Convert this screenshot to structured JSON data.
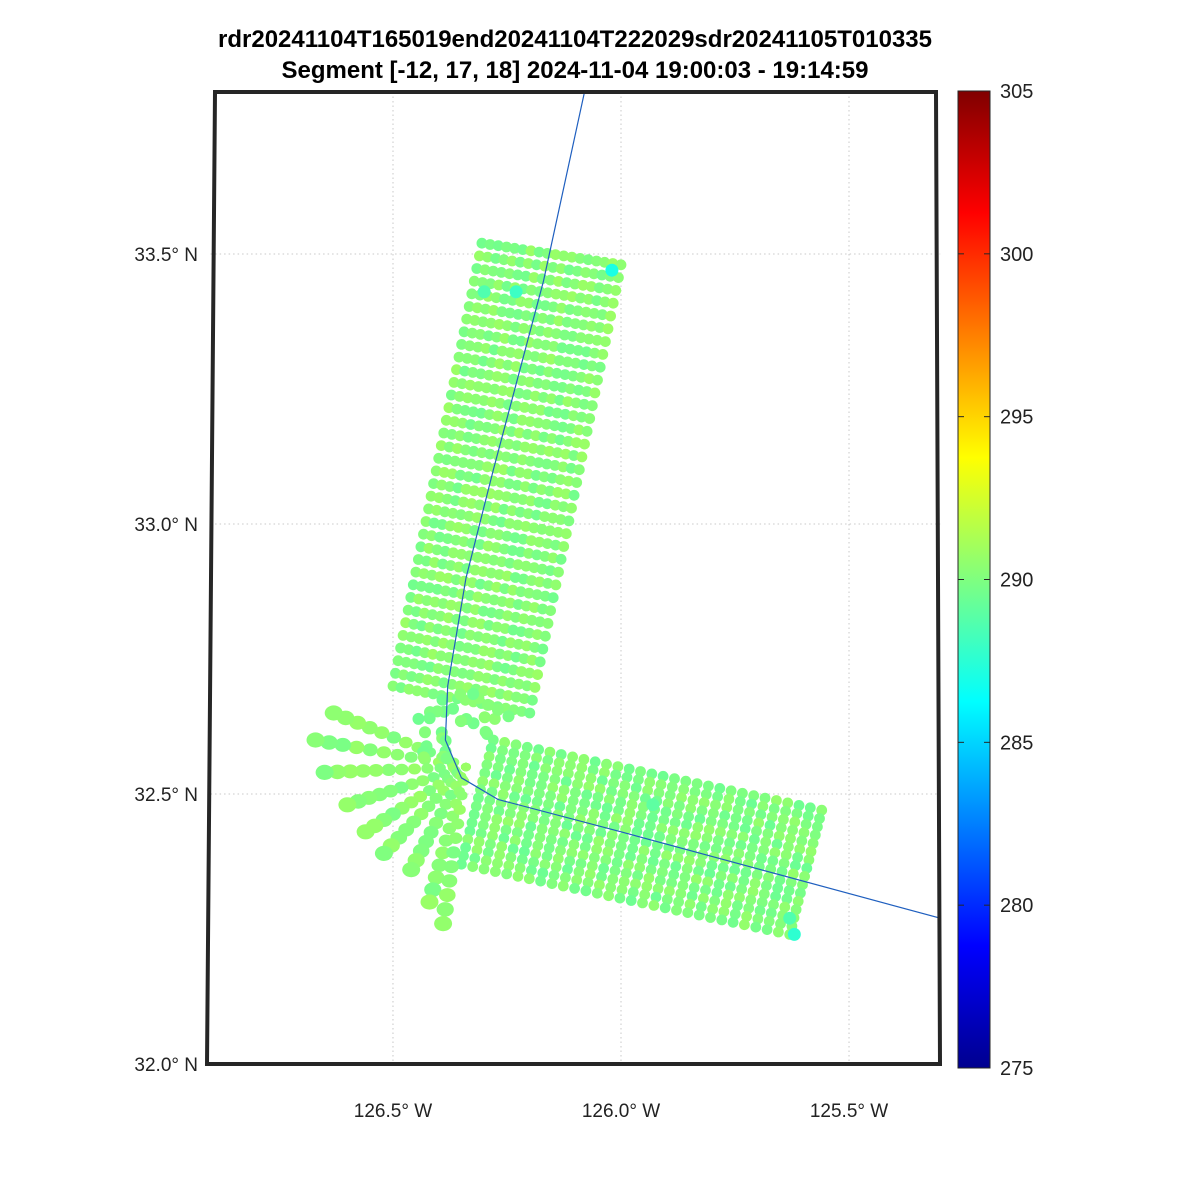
{
  "chart_data": {
    "type": "scatter",
    "title": "rdr20241104T165019end20241104T222029sdr20241105T010335",
    "subtitle": "Segment [-12, 17, 18] 2024-11-04 19:00:03 - 19:14:59",
    "xlabel": "",
    "ylabel": "",
    "projection": "map",
    "xlim": [
      -126.9,
      -125.3
    ],
    "ylim": [
      32.0,
      33.8
    ],
    "grid": true,
    "x_ticks": [
      {
        "value": -126.5,
        "label": "126.5° W"
      },
      {
        "value": -126.0,
        "label": "126.0° W"
      },
      {
        "value": -125.5,
        "label": "125.5° W"
      }
    ],
    "y_ticks": [
      {
        "value": 32.0,
        "label": "32.0° N"
      },
      {
        "value": 32.5,
        "label": "32.5° N"
      },
      {
        "value": 33.0,
        "label": "33.0° N"
      },
      {
        "value": 33.5,
        "label": "33.5° N"
      }
    ],
    "colorbar": {
      "colormap": "jet",
      "range": [
        275,
        305
      ],
      "ticks": [
        "275",
        "280",
        "285",
        "290",
        "295",
        "300",
        "305"
      ]
    },
    "track": {
      "color": "#1f5fbf",
      "points": [
        {
          "lon": -126.08,
          "lat": 33.8
        },
        {
          "lon": -126.17,
          "lat": 33.45
        },
        {
          "lon": -126.28,
          "lat": 33.1
        },
        {
          "lon": -126.34,
          "lat": 32.9
        },
        {
          "lon": -126.38,
          "lat": 32.7
        },
        {
          "lon": -126.385,
          "lat": 32.6
        },
        {
          "lon": -126.35,
          "lat": 32.53
        },
        {
          "lon": -126.27,
          "lat": 32.49
        },
        {
          "lon": -126.0,
          "lat": 32.43
        },
        {
          "lon": -125.65,
          "lat": 32.35
        },
        {
          "lon": -125.3,
          "lat": 32.27
        }
      ]
    },
    "swaths": [
      {
        "name": "north-leg",
        "value": 290.2,
        "corner_a": {
          "lon": -126.305,
          "lat": 33.52
        },
        "corner_b": {
          "lon": -126.0,
          "lat": 33.48
        },
        "corner_c": {
          "lon": -126.2,
          "lat": 32.65
        },
        "corner_d": {
          "lon": -126.5,
          "lat": 32.7
        },
        "rows": 36,
        "cols": 18
      },
      {
        "name": "east-leg",
        "value": 290.0,
        "corner_a": {
          "lon": -126.28,
          "lat": 32.6
        },
        "corner_b": {
          "lon": -125.56,
          "lat": 32.47
        },
        "corner_c": {
          "lon": -125.63,
          "lat": 32.24
        },
        "corner_d": {
          "lon": -126.35,
          "lat": 32.37
        },
        "rows": 16,
        "cols": 30
      }
    ],
    "turn_fan": {
      "value": 290.3,
      "center": {
        "lon": -126.34,
        "lat": 32.55
      },
      "rays": [
        {
          "lon": -126.63,
          "lat": 32.65
        },
        {
          "lon": -126.67,
          "lat": 32.6
        },
        {
          "lon": -126.65,
          "lat": 32.54
        },
        {
          "lon": -126.6,
          "lat": 32.48
        },
        {
          "lon": -126.56,
          "lat": 32.43
        },
        {
          "lon": -126.52,
          "lat": 32.39
        },
        {
          "lon": -126.46,
          "lat": 32.36
        },
        {
          "lon": -126.42,
          "lat": 32.3
        },
        {
          "lon": -126.39,
          "lat": 32.26
        }
      ]
    },
    "anomalies": [
      {
        "lon": -126.02,
        "lat": 33.47,
        "value": 287.0
      },
      {
        "lon": -126.23,
        "lat": 33.43,
        "value": 288.0
      },
      {
        "lon": -126.3,
        "lat": 33.43,
        "value": 288.6
      },
      {
        "lon": -125.62,
        "lat": 32.24,
        "value": 287.6
      },
      {
        "lon": -125.63,
        "lat": 32.27,
        "value": 288.6
      },
      {
        "lon": -125.93,
        "lat": 32.48,
        "value": 289.0
      }
    ]
  }
}
